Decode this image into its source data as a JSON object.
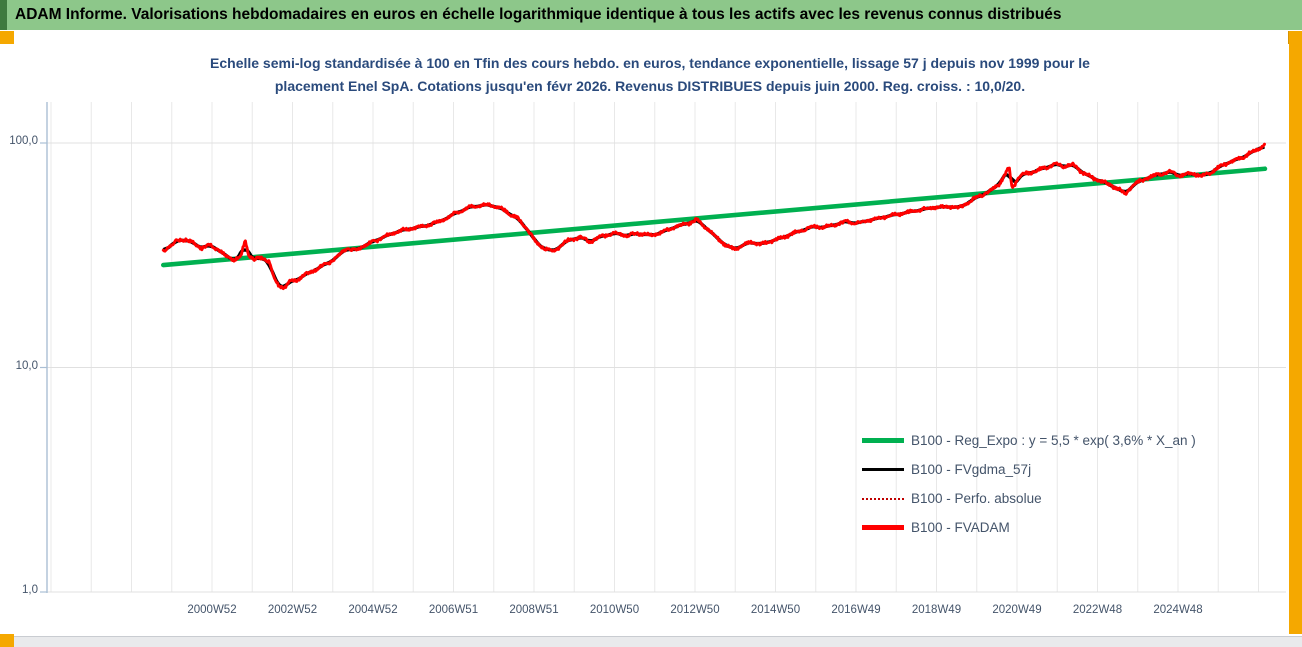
{
  "window": {
    "header_title": "ADAM Informe. Valorisations hebdomadaires en euros en échelle logarithmique identique à tous les actifs avec les revenus connus distribués",
    "accents": {
      "banner_green": "#8dc78a",
      "banner_edge_green": "#3f7a3f",
      "corner_orange": "#f5a800",
      "scrollbar_gray": "#e9eaec"
    }
  },
  "chart": {
    "title_line1": "Echelle semi-log standardisée à 100 en Tfin des cours hebdo. en euros, tendance exponentielle, lissage 57 j depuis nov 1999 pour le",
    "title_line2": "placement Enel SpA. Cotations jusqu'en févr 2026. Revenus DISTRIBUES depuis juin 2000. Reg. croiss. : 10,0/20.",
    "title_color": "#2a4a7c",
    "axis_label_color": "#44546a",
    "legend": [
      {
        "label": "B100 - Reg_Expo : y = 5,5 * exp( 3,6% *  X_an )",
        "color": "#00b050",
        "style": "thick-solid"
      },
      {
        "label": "B100 - FVgdma_57j",
        "color": "#000000",
        "style": "thin-solid"
      },
      {
        "label": "B100 - Perfo. absolue",
        "color": "#c00000",
        "style": "dotted"
      },
      {
        "label": "B100 - FVADAM",
        "color": "#ff0000",
        "style": "thick-solid"
      }
    ]
  },
  "chart_data": {
    "type": "line",
    "title": "Echelle semi-log standardisée à 100 en Tfin des cours hebdo. en euros, tendance exponentielle, lissage 57 j depuis nov 1999 pour le placement Enel SpA. Cotations jusqu'en févr 2026. Revenus DISTRIBUES depuis juin 2000. Reg. croiss. : 10,0/20.",
    "x_axis": {
      "tick_labels": [
        "2000W52",
        "2002W52",
        "2004W52",
        "2006W51",
        "2008W51",
        "2010W50",
        "2012W50",
        "2014W50",
        "2016W49",
        "2018W49",
        "2020W49",
        "2022W48",
        "2024W48"
      ],
      "tick_years": [
        2001,
        2003,
        2005,
        2007,
        2009,
        2011,
        2013,
        2015,
        2017,
        2019,
        2021,
        2023,
        2025
      ],
      "gridline_years_range": [
        1997,
        2027
      ]
    },
    "y_axis": {
      "scale": "log",
      "tick_labels": [
        "100,0",
        "10,0",
        "1,0"
      ],
      "tick_values": [
        100,
        10,
        1
      ],
      "range": [
        1,
        130
      ],
      "grid": true
    },
    "legend_position": "right-middle",
    "series": [
      {
        "name": "B100 - Reg_Expo",
        "kind": "trend",
        "color": "#00b050",
        "points": [
          [
            1999.79,
            28.6
          ],
          [
            2027.16,
            76.8
          ]
        ]
      },
      {
        "name": "B100 - FVgdma_57j",
        "kind": "smoothed",
        "color": "#000000",
        "derived_from": "B100 - FVADAM",
        "smoothing_days": 57
      },
      {
        "name": "B100 - Perfo. absolue",
        "kind": "dotted-overlay",
        "color": "#c00000",
        "derived_from": "B100 - FVADAM"
      },
      {
        "name": "B100 - FVADAM",
        "kind": "weekly",
        "color": "#ff0000",
        "points": [
          [
            1999.79,
            33.0
          ],
          [
            1999.95,
            34.6
          ],
          [
            2000.15,
            36.9
          ],
          [
            2000.35,
            37.2
          ],
          [
            2000.55,
            35.6
          ],
          [
            2000.75,
            34.0
          ],
          [
            2000.95,
            35.2
          ],
          [
            2001.15,
            33.6
          ],
          [
            2001.35,
            31.2
          ],
          [
            2001.55,
            30.2
          ],
          [
            2001.72,
            31.2
          ],
          [
            2001.82,
            36.8
          ],
          [
            2001.92,
            31.8
          ],
          [
            2002.05,
            30.2
          ],
          [
            2002.25,
            30.9
          ],
          [
            2002.42,
            29.6
          ],
          [
            2002.55,
            24.6
          ],
          [
            2002.68,
            23.0
          ],
          [
            2002.82,
            22.8
          ],
          [
            2002.95,
            24.2
          ],
          [
            2003.15,
            24.8
          ],
          [
            2003.4,
            26.3
          ],
          [
            2003.65,
            27.8
          ],
          [
            2003.9,
            29.2
          ],
          [
            2004.1,
            31.0
          ],
          [
            2004.35,
            34.0
          ],
          [
            2004.55,
            33.2
          ],
          [
            2004.8,
            35.0
          ],
          [
            2005.05,
            36.4
          ],
          [
            2005.35,
            38.6
          ],
          [
            2005.65,
            40.6
          ],
          [
            2005.95,
            41.6
          ],
          [
            2006.25,
            42.6
          ],
          [
            2006.55,
            44.0
          ],
          [
            2006.85,
            46.6
          ],
          [
            2007.15,
            49.6
          ],
          [
            2007.5,
            52.4
          ],
          [
            2007.9,
            53.3
          ],
          [
            2008.1,
            51.8
          ],
          [
            2008.35,
            49.2
          ],
          [
            2008.6,
            46.0
          ],
          [
            2008.85,
            41.0
          ],
          [
            2009.05,
            36.0
          ],
          [
            2009.3,
            33.8
          ],
          [
            2009.5,
            32.8
          ],
          [
            2009.7,
            35.4
          ],
          [
            2009.9,
            37.2
          ],
          [
            2010.15,
            37.9
          ],
          [
            2010.4,
            36.4
          ],
          [
            2010.7,
            38.4
          ],
          [
            2011.0,
            39.8
          ],
          [
            2011.3,
            38.6
          ],
          [
            2011.6,
            39.6
          ],
          [
            2011.9,
            38.8
          ],
          [
            2012.2,
            40.2
          ],
          [
            2012.55,
            42.4
          ],
          [
            2012.85,
            44.0
          ],
          [
            2013.05,
            45.5
          ],
          [
            2013.25,
            42.5
          ],
          [
            2013.5,
            38.5
          ],
          [
            2013.75,
            35.2
          ],
          [
            2013.95,
            33.8
          ],
          [
            2014.15,
            34.6
          ],
          [
            2014.4,
            36.2
          ],
          [
            2014.6,
            35.4
          ],
          [
            2014.85,
            36.2
          ],
          [
            2015.1,
            37.6
          ],
          [
            2015.4,
            39.2
          ],
          [
            2015.7,
            41.2
          ],
          [
            2015.95,
            42.6
          ],
          [
            2016.2,
            42.0
          ],
          [
            2016.5,
            43.6
          ],
          [
            2016.8,
            44.6
          ],
          [
            2017.1,
            44.2
          ],
          [
            2017.4,
            45.6
          ],
          [
            2017.65,
            46.6
          ],
          [
            2017.9,
            47.6
          ],
          [
            2018.15,
            48.6
          ],
          [
            2018.4,
            49.4
          ],
          [
            2018.65,
            50.6
          ],
          [
            2018.9,
            51.6
          ],
          [
            2019.15,
            51.8
          ],
          [
            2019.4,
            52.0
          ],
          [
            2019.55,
            51.2
          ],
          [
            2019.8,
            54.6
          ],
          [
            2020.05,
            58.0
          ],
          [
            2020.3,
            60.5
          ],
          [
            2020.55,
            65.5
          ],
          [
            2020.72,
            73.0
          ],
          [
            2020.8,
            78.0
          ],
          [
            2020.88,
            62.5
          ],
          [
            2021.0,
            68.5
          ],
          [
            2021.15,
            72.5
          ],
          [
            2021.4,
            74.5
          ],
          [
            2021.7,
            77.5
          ],
          [
            2021.95,
            80.5
          ],
          [
            2022.15,
            79.0
          ],
          [
            2022.4,
            80.0
          ],
          [
            2022.6,
            74.5
          ],
          [
            2022.9,
            69.5
          ],
          [
            2023.15,
            67.0
          ],
          [
            2023.4,
            64.0
          ],
          [
            2023.58,
            61.5
          ],
          [
            2023.68,
            58.8
          ],
          [
            2023.85,
            64.5
          ],
          [
            2024.05,
            67.5
          ],
          [
            2024.3,
            70.5
          ],
          [
            2024.55,
            72.5
          ],
          [
            2024.8,
            74.5
          ],
          [
            2025.05,
            71.5
          ],
          [
            2025.35,
            73.5
          ],
          [
            2025.6,
            71.0
          ],
          [
            2025.85,
            74.5
          ],
          [
            2026.1,
            79.5
          ],
          [
            2026.35,
            83.0
          ],
          [
            2026.6,
            86.5
          ],
          [
            2026.8,
            90.5
          ],
          [
            2027.0,
            94.0
          ],
          [
            2027.16,
            99.0
          ]
        ]
      }
    ]
  }
}
